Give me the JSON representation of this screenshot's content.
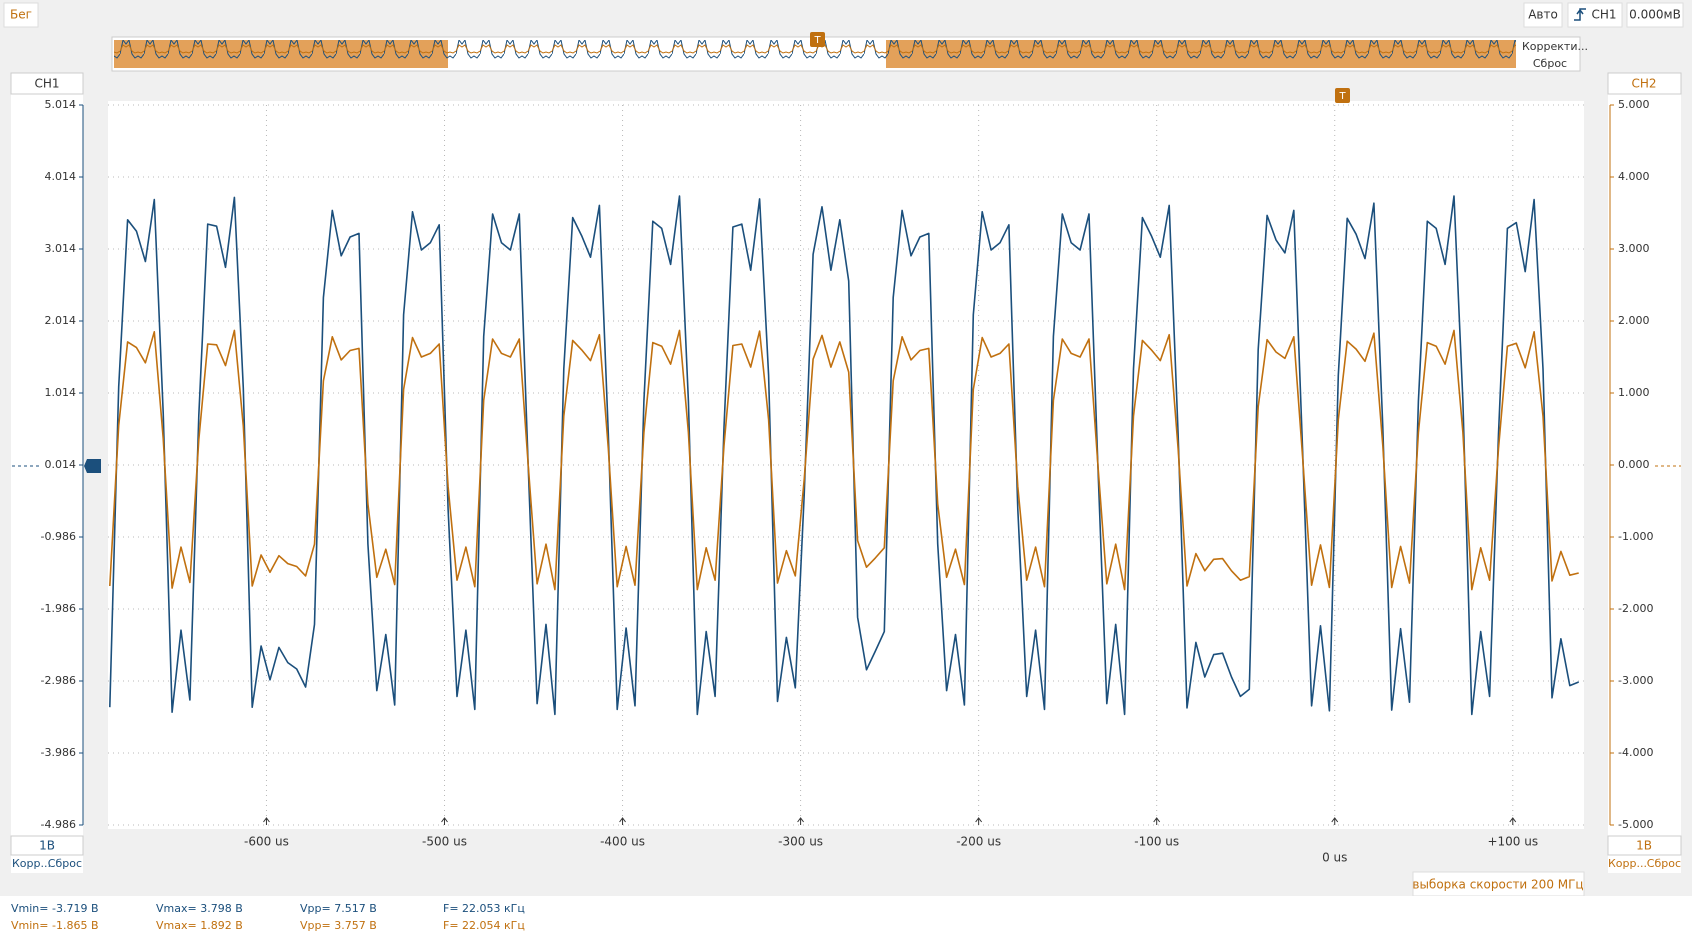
{
  "ui": {
    "run_state": "Бег",
    "trigger_mode": "Авто",
    "trigger_source": "CH1",
    "trigger_level": "0.000мВ",
    "overview_correct": "Корректи...",
    "overview_reset": "Сброс",
    "trigger_marker": "T",
    "ch1_scale": "1В",
    "ch1_correct": "Корр...",
    "ch1_reset": "Сброс",
    "ch2_scale": "1В",
    "ch2_correct": "Корр...",
    "ch2_reset": "Сброс",
    "sample_rate": "выборка скорости 200 МГц"
  },
  "measurements": {
    "rows": [
      [
        "Vmin= -3.719 В",
        "Vmax= 3.798 В",
        "Vpp= 7.517 В",
        "F= 22.053 кГц"
      ],
      [
        "Vmin= -1.865 В",
        "Vmax= 1.892 В",
        "Vpp= 3.757 В",
        "F= 22.054 кГц"
      ]
    ]
  },
  "chart_data": {
    "type": "line",
    "grid": true,
    "xlim": [
      -689,
      140
    ],
    "xticks": [
      {
        "value": -600,
        "label": "-600 us"
      },
      {
        "value": -500,
        "label": "-500 us"
      },
      {
        "value": -400,
        "label": "-400 us"
      },
      {
        "value": -300,
        "label": "-300 us"
      },
      {
        "value": -200,
        "label": "-200 us"
      },
      {
        "value": -100,
        "label": "-100 us"
      },
      {
        "value": 0,
        "label": "0 us"
      },
      {
        "value": 100,
        "label": "+100 us"
      }
    ],
    "ylim": [
      -4.986,
      5.014
    ],
    "yticks": [
      5.014,
      4.014,
      3.014,
      2.014,
      1.014,
      0.014,
      -0.986,
      -1.986,
      -2.986,
      -3.986,
      -4.986
    ],
    "y2lim": [
      -5,
      5
    ],
    "y2ticks": [
      {
        "value": 5,
        "label": "5.000"
      },
      {
        "value": 4,
        "label": "4.000"
      },
      {
        "value": 3,
        "label": "3.000"
      },
      {
        "value": 2,
        "label": "2.000"
      },
      {
        "value": 1,
        "label": "1.000"
      },
      {
        "value": 0,
        "label": "0.000"
      },
      {
        "value": -1,
        "label": "-1.000"
      },
      {
        "value": -2,
        "label": "-2.000"
      },
      {
        "value": -3,
        "label": "-3.000"
      },
      {
        "value": -4,
        "label": "-4.000"
      },
      {
        "value": -5,
        "label": "-5.000"
      }
    ],
    "x": [
      -688,
      -683,
      -678,
      -673,
      -668,
      -663,
      -658,
      -653,
      -648,
      -643,
      -638,
      -633,
      -628,
      -623,
      -618,
      -613,
      -608,
      -603,
      -598,
      -593,
      -588,
      -583,
      -578,
      -573,
      -568,
      -563,
      -558,
      -553,
      -548,
      -543,
      -538,
      -533,
      -528,
      -523,
      -518,
      -513,
      -508,
      -503,
      -498,
      -493,
      -488,
      -483,
      -478,
      -473,
      -468,
      -463,
      -458,
      -453,
      -448,
      -443,
      -438,
      -433,
      -428,
      -423,
      -418,
      -413,
      -408,
      -403,
      -398,
      -393,
      -388,
      -383,
      -378,
      -373,
      -368,
      -363,
      -358,
      -353,
      -348,
      -343,
      -338,
      -333,
      -328,
      -323,
      -318,
      -313,
      -308,
      -303,
      -298,
      -293,
      -288,
      -283,
      -278,
      -273,
      -268,
      -263,
      -258,
      -253,
      -248,
      -243,
      -238,
      -233,
      -228,
      -223,
      -218,
      -213,
      -208,
      -203,
      -198,
      -193,
      -188,
      -183,
      -178,
      -173,
      -168,
      -163,
      -158,
      -153,
      -148,
      -143,
      -138,
      -133,
      -128,
      -123,
      -118,
      -113,
      -108,
      -103,
      -98,
      -93,
      -88,
      -83,
      -78,
      -73,
      -68,
      -63,
      -58,
      -53,
      -48,
      -43,
      -38,
      -33,
      -28,
      -23,
      -18,
      -13,
      -8,
      -3,
      2,
      7,
      12,
      17,
      22,
      27,
      32,
      37,
      42,
      47,
      52,
      57,
      62,
      67,
      72,
      77,
      82,
      87,
      92,
      97,
      102,
      107,
      112,
      117,
      122,
      127,
      132,
      137
    ],
    "series": [
      {
        "name": "CH1",
        "color": "#1b4f7c",
        "values": [
          -3.35,
          1.1,
          3.42,
          3.26,
          2.84,
          3.7,
          0.74,
          -3.42,
          -2.28,
          -3.25,
          0.7,
          3.36,
          3.33,
          2.76,
          3.73,
          1.08,
          -3.35,
          -2.5,
          -2.97,
          -2.52,
          -2.73,
          -2.82,
          -3.07,
          -2.2,
          2.34,
          3.55,
          2.92,
          3.18,
          3.23,
          -1.08,
          -3.12,
          -2.34,
          -3.32,
          2.1,
          3.53,
          3.0,
          3.1,
          3.35,
          -0.6,
          -3.2,
          -2.28,
          -3.38,
          1.8,
          3.5,
          3.1,
          3.0,
          3.5,
          0,
          -3.3,
          -2.2,
          -3.45,
          1.35,
          3.45,
          3.2,
          2.9,
          3.62,
          0.45,
          -3.38,
          -2.25,
          -3.33,
          0.9,
          3.4,
          3.3,
          2.8,
          3.75,
          0.9,
          -3.45,
          -2.3,
          -3.2,
          0.54,
          3.32,
          3.36,
          2.72,
          3.71,
          1.26,
          -3.27,
          -2.38,
          -3.08,
          -0.4,
          2.94,
          3.6,
          2.72,
          3.42,
          2.57,
          -2.1,
          -2.83,
          -2.57,
          -2.3,
          2.34,
          3.55,
          2.92,
          3.18,
          3.23,
          -1.08,
          -3.12,
          -2.34,
          -3.32,
          2.1,
          3.53,
          3.0,
          3.1,
          3.35,
          -0.6,
          -3.2,
          -2.28,
          -3.38,
          1.8,
          3.5,
          3.1,
          3.0,
          3.5,
          0,
          -3.3,
          -2.2,
          -3.45,
          1.35,
          3.45,
          3.2,
          2.9,
          3.62,
          0.45,
          -3.36,
          -2.45,
          -2.93,
          -2.62,
          -2.6,
          -2.93,
          -3.2,
          -3.1,
          1.62,
          3.48,
          3.14,
          2.96,
          3.55,
          0.18,
          -3.33,
          -2.22,
          -3.4,
          1.26,
          3.44,
          3.22,
          2.88,
          3.65,
          0.54,
          -3.39,
          -2.26,
          -3.28,
          0.9,
          3.4,
          3.3,
          2.8,
          3.75,
          0.9,
          -3.45,
          -2.3,
          -3.2,
          0.45,
          3.3,
          3.38,
          2.7,
          3.7,
          1.35,
          -3.22,
          -2.4,
          -3.05,
          -3.0
        ]
      },
      {
        "name": "CH2",
        "color": "#c0700f",
        "axis": "y2",
        "values": [
          -1.68,
          0.55,
          1.71,
          1.63,
          1.42,
          1.85,
          0.37,
          -1.71,
          -1.14,
          -1.63,
          0.35,
          1.68,
          1.67,
          1.38,
          1.87,
          0.54,
          -1.68,
          -1.25,
          -1.49,
          -1.26,
          -1.37,
          -1.41,
          -1.54,
          -1.1,
          1.17,
          1.78,
          1.46,
          1.59,
          1.62,
          -0.54,
          -1.56,
          -1.17,
          -1.66,
          1.05,
          1.77,
          1.5,
          1.55,
          1.68,
          -0.3,
          -1.6,
          -1.14,
          -1.69,
          0.9,
          1.75,
          1.55,
          1.5,
          1.75,
          0,
          -1.65,
          -1.1,
          -1.73,
          0.68,
          1.73,
          1.6,
          1.45,
          1.81,
          0.23,
          -1.69,
          -1.13,
          -1.67,
          0.45,
          1.7,
          1.65,
          1.4,
          1.87,
          0.45,
          -1.73,
          -1.15,
          -1.6,
          0.27,
          1.66,
          1.68,
          1.36,
          1.86,
          0.63,
          -1.64,
          -1.19,
          -1.54,
          -0.2,
          1.47,
          1.8,
          1.36,
          1.71,
          1.29,
          -1.05,
          -1.42,
          -1.29,
          -1.15,
          1.17,
          1.78,
          1.46,
          1.59,
          1.62,
          -0.54,
          -1.56,
          -1.17,
          -1.66,
          1.05,
          1.77,
          1.5,
          1.55,
          1.68,
          -0.3,
          -1.6,
          -1.14,
          -1.69,
          0.9,
          1.75,
          1.55,
          1.5,
          1.75,
          0,
          -1.65,
          -1.1,
          -1.73,
          0.68,
          1.73,
          1.6,
          1.45,
          1.81,
          0.23,
          -1.68,
          -1.23,
          -1.47,
          -1.31,
          -1.3,
          -1.47,
          -1.6,
          -1.55,
          0.81,
          1.74,
          1.57,
          1.48,
          1.78,
          0.09,
          -1.67,
          -1.11,
          -1.7,
          0.63,
          1.72,
          1.61,
          1.44,
          1.83,
          0.27,
          -1.7,
          -1.13,
          -1.64,
          0.45,
          1.7,
          1.65,
          1.4,
          1.87,
          0.45,
          -1.73,
          -1.15,
          -1.6,
          0.23,
          1.65,
          1.69,
          1.35,
          1.85,
          0.68,
          -1.61,
          -1.2,
          -1.53,
          -1.5
        ]
      }
    ]
  }
}
